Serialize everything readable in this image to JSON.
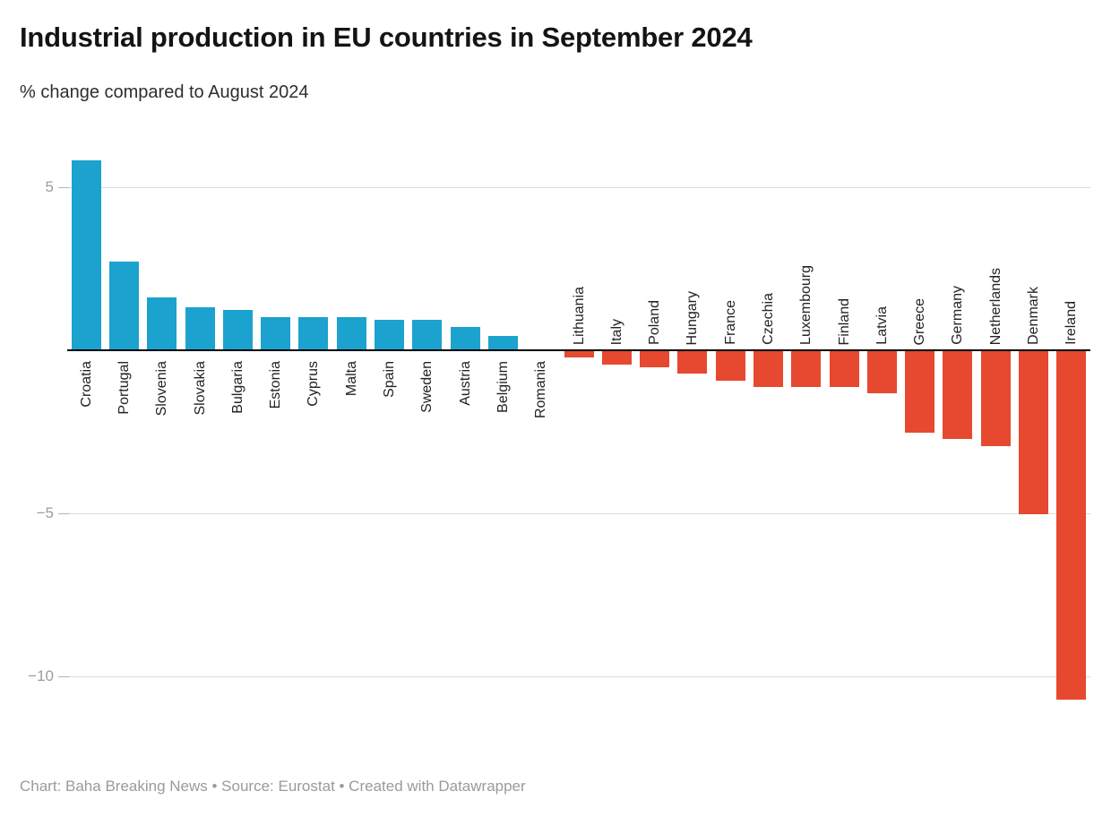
{
  "header": {
    "title": "Industrial production in EU countries in September 2024",
    "subtitle": "% change compared to August 2024"
  },
  "footer": {
    "credit": "Chart: Baha Breaking News • Source: Eurostat • Created with Datawrapper"
  },
  "colors": {
    "positive_bar": "#1CA2CE",
    "negative_bar": "#E6492F",
    "baseline": "#000000",
    "gridline": "#DDDDDD",
    "tick": "#B5B5B5",
    "axis_label_text": "#9B9B9B",
    "bar_label_text": "#222222",
    "title_text": "#141414",
    "subtitle_text": "#2E2E2E",
    "credit_text": "#9A9A9A"
  },
  "chart_data": {
    "type": "bar",
    "title": "Industrial production in EU countries in September 2024",
    "subtitle": "% change compared to August 2024",
    "xlabel": "",
    "ylabel": "% change compared to August 2024",
    "categories": [
      "Croatia",
      "Portugal",
      "Slovenia",
      "Slovakia",
      "Bulgaria",
      "Estonia",
      "Cyprus",
      "Malta",
      "Spain",
      "Sweden",
      "Austria",
      "Belgium",
      "Romania",
      "Lithuania",
      "Italy",
      "Poland",
      "Hungary",
      "France",
      "Czechia",
      "Luxembourg",
      "Finland",
      "Latvia",
      "Greece",
      "Germany",
      "Netherlands",
      "Denmark",
      "Ireland"
    ],
    "values": [
      5.8,
      2.7,
      1.6,
      1.3,
      1.2,
      1.0,
      1.0,
      1.0,
      0.9,
      0.9,
      0.7,
      0.4,
      0.0,
      -0.2,
      -0.4,
      -0.5,
      -0.7,
      -0.9,
      -1.1,
      -1.1,
      -1.1,
      -1.3,
      -2.5,
      -2.7,
      -2.9,
      -5.0,
      -10.7
    ],
    "ylim": [
      -11.6,
      6.3
    ],
    "y_ticks": [
      {
        "value": 5,
        "label": "5"
      },
      {
        "value": -5,
        "label": "−5"
      },
      {
        "value": -10,
        "label": "−10"
      }
    ],
    "grid": true,
    "legend": false,
    "bar_label_rotation": "vertical, reading bottom-to-top",
    "positive_labels_position": "below axis",
    "negative_labels_position": "above axis"
  }
}
